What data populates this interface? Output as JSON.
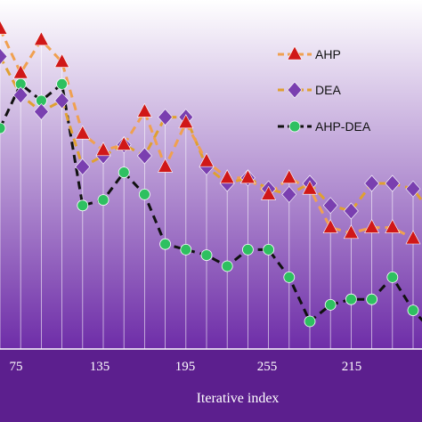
{
  "chart_data": {
    "type": "line",
    "title": "",
    "xlabel": "Iterative index",
    "ylabel": "",
    "x_tick_labels": [
      "75",
      "135",
      "195",
      "255",
      "215"
    ],
    "grid": "vertical",
    "legend_position": "top-right",
    "colors": {
      "bg_top": "#ffffff",
      "bg_bottom": "#6e2da8",
      "axis_band": "#5c1f8e",
      "grid": "#ffffff"
    },
    "series": [
      {
        "name": "AHP",
        "line_color": "#f0a050",
        "marker_color": "#d01818",
        "marker": "triangle",
        "values": [
          8.8,
          8.0,
          8.6,
          8.2,
          6.9,
          6.6,
          6.7,
          7.3,
          6.3,
          7.1,
          6.4,
          6.1,
          6.1,
          5.8,
          6.1,
          5.9,
          5.2,
          5.1,
          5.2,
          5.2,
          5.0,
          5.0
        ]
      },
      {
        "name": "DEA",
        "line_color": "#e0a030",
        "marker_color": "#7a3fb0",
        "marker": "diamond",
        "values": [
          8.3,
          7.6,
          7.3,
          7.5,
          6.3,
          6.5,
          6.7,
          6.5,
          7.2,
          7.2,
          6.3,
          6.0,
          6.1,
          5.9,
          5.8,
          6.0,
          5.6,
          5.5,
          6.0,
          6.0,
          5.9,
          5.4
        ]
      },
      {
        "name": "AHP-DEA",
        "line_color": "#111111",
        "marker_color": "#2ec060",
        "marker": "circle",
        "values": [
          7.0,
          7.8,
          7.5,
          7.8,
          5.6,
          5.7,
          6.2,
          5.8,
          4.9,
          4.8,
          4.7,
          4.5,
          4.8,
          4.8,
          4.3,
          3.5,
          3.8,
          3.9,
          3.9,
          4.3,
          3.7,
          3.3
        ]
      }
    ]
  }
}
